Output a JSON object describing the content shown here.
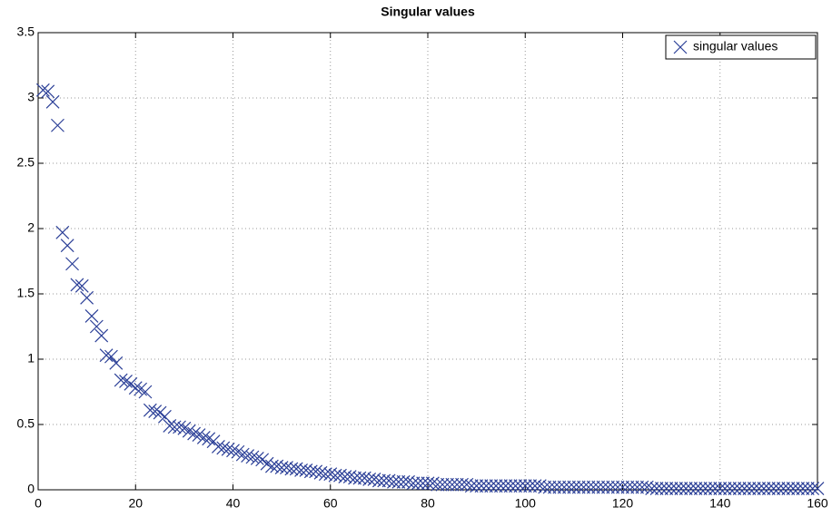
{
  "chart_data": {
    "type": "scatter",
    "title": "Singular values",
    "x": [
      1,
      2,
      3,
      4,
      5,
      6,
      7,
      8,
      9,
      10,
      11,
      12,
      13,
      14,
      15,
      16,
      17,
      18,
      19,
      20,
      21,
      22,
      23,
      24,
      25,
      26,
      27,
      28,
      29,
      30,
      31,
      32,
      33,
      34,
      35,
      36,
      37,
      38,
      39,
      40,
      41,
      42,
      43,
      44,
      45,
      46,
      47,
      48,
      49,
      50,
      51,
      52,
      53,
      54,
      55,
      56,
      57,
      58,
      59,
      60,
      61,
      62,
      63,
      64,
      65,
      66,
      67,
      68,
      69,
      70,
      71,
      72,
      73,
      74,
      75,
      76,
      77,
      78,
      79,
      80,
      81,
      82,
      83,
      84,
      85,
      86,
      87,
      88,
      89,
      90,
      91,
      92,
      93,
      94,
      95,
      96,
      97,
      98,
      99,
      100,
      101,
      102,
      103,
      104,
      105,
      106,
      107,
      108,
      109,
      110,
      111,
      112,
      113,
      114,
      115,
      116,
      117,
      118,
      119,
      120,
      121,
      122,
      123,
      124,
      125,
      126,
      127,
      128,
      129,
      130,
      131,
      132,
      133,
      134,
      135,
      136,
      137,
      138,
      139,
      140,
      141,
      142,
      143,
      144,
      145,
      146,
      147,
      148,
      149,
      150,
      151,
      152,
      153,
      154,
      155,
      156,
      157,
      158,
      159,
      160
    ],
    "series": [
      {
        "name": "singular values",
        "color": "#2b3f97",
        "marker": "x",
        "values": [
          3.06,
          3.05,
          2.97,
          2.79,
          1.97,
          1.87,
          1.73,
          1.57,
          1.56,
          1.47,
          1.33,
          1.25,
          1.18,
          1.03,
          1.02,
          0.97,
          0.84,
          0.83,
          0.81,
          0.78,
          0.77,
          0.75,
          0.61,
          0.6,
          0.59,
          0.56,
          0.49,
          0.48,
          0.48,
          0.47,
          0.45,
          0.43,
          0.42,
          0.4,
          0.39,
          0.37,
          0.33,
          0.32,
          0.31,
          0.3,
          0.29,
          0.27,
          0.26,
          0.25,
          0.24,
          0.23,
          0.2,
          0.18,
          0.18,
          0.17,
          0.17,
          0.16,
          0.16,
          0.15,
          0.15,
          0.14,
          0.14,
          0.13,
          0.12,
          0.12,
          0.11,
          0.11,
          0.1,
          0.1,
          0.09,
          0.09,
          0.09,
          0.08,
          0.08,
          0.07,
          0.07,
          0.07,
          0.06,
          0.06,
          0.06,
          0.06,
          0.05,
          0.05,
          0.05,
          0.05,
          0.05,
          0.04,
          0.04,
          0.04,
          0.04,
          0.04,
          0.04,
          0.04,
          0.03,
          0.03,
          0.03,
          0.03,
          0.03,
          0.03,
          0.03,
          0.03,
          0.03,
          0.03,
          0.03,
          0.03,
          0.03,
          0.03,
          0.03,
          0.02,
          0.02,
          0.02,
          0.02,
          0.02,
          0.02,
          0.02,
          0.02,
          0.02,
          0.02,
          0.02,
          0.02,
          0.02,
          0.02,
          0.02,
          0.02,
          0.02,
          0.02,
          0.02,
          0.02,
          0.02,
          0.02,
          0.01,
          0.01,
          0.01,
          0.01,
          0.01,
          0.01,
          0.01,
          0.01,
          0.01,
          0.01,
          0.01,
          0.01,
          0.01,
          0.01,
          0.01,
          0.01,
          0.01,
          0.01,
          0.01,
          0.01,
          0.01,
          0.01,
          0.01,
          0.01,
          0.01,
          0.01,
          0.01,
          0.01,
          0.01,
          0.01,
          0.01,
          0.01,
          0.01,
          0.01,
          0.01
        ]
      }
    ],
    "xlim": [
      0,
      160
    ],
    "xticks": [
      0,
      20,
      40,
      60,
      80,
      100,
      120,
      140,
      160
    ],
    "ylim": [
      0,
      3.5
    ],
    "yticks": [
      0,
      0.5,
      1,
      1.5,
      2,
      2.5,
      3,
      3.5
    ],
    "grid": true,
    "legend": "top-right"
  }
}
